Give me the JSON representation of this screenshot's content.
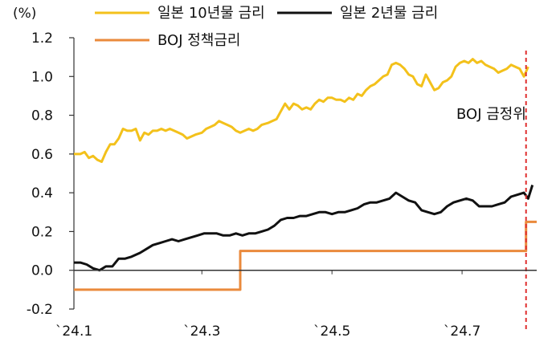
{
  "chart_data": {
    "type": "line",
    "unit": "(%)",
    "ylim": [
      -0.2,
      1.2
    ],
    "yticks": [
      "1.2",
      "1.0",
      "0.8",
      "0.6",
      "0.4",
      "0.2",
      "0.0",
      "-0.2"
    ],
    "ytick_values": [
      1.2,
      1.0,
      0.8,
      0.6,
      0.4,
      0.2,
      0.0,
      -0.2
    ],
    "xticks": [
      "`24.1",
      "`24.3",
      "`24.5",
      "`24.7"
    ],
    "xtick_values": [
      "2024-01-01",
      "2024-03-01",
      "2024-05-01",
      "2024-07-01"
    ],
    "xlim": [
      "2024-01-01",
      "2024-08-05"
    ],
    "grid": false,
    "legend_position": "top",
    "annotation": {
      "text": "BOJ 금정위",
      "x": "2024-07-31",
      "color": "#e03030"
    },
    "series": [
      {
        "name": "일본 10년물 금리",
        "color": "#f3c11b",
        "points": [
          [
            "2024-01-01",
            0.6
          ],
          [
            "2024-01-04",
            0.6
          ],
          [
            "2024-01-06",
            0.61
          ],
          [
            "2024-01-08",
            0.58
          ],
          [
            "2024-01-10",
            0.59
          ],
          [
            "2024-01-12",
            0.57
          ],
          [
            "2024-01-14",
            0.56
          ],
          [
            "2024-01-16",
            0.61
          ],
          [
            "2024-01-18",
            0.65
          ],
          [
            "2024-01-20",
            0.65
          ],
          [
            "2024-01-22",
            0.68
          ],
          [
            "2024-01-24",
            0.73
          ],
          [
            "2024-01-26",
            0.72
          ],
          [
            "2024-01-28",
            0.72
          ],
          [
            "2024-01-30",
            0.73
          ],
          [
            "2024-02-01",
            0.67
          ],
          [
            "2024-02-03",
            0.71
          ],
          [
            "2024-02-05",
            0.7
          ],
          [
            "2024-02-07",
            0.72
          ],
          [
            "2024-02-09",
            0.72
          ],
          [
            "2024-02-11",
            0.73
          ],
          [
            "2024-02-13",
            0.72
          ],
          [
            "2024-02-15",
            0.73
          ],
          [
            "2024-02-17",
            0.72
          ],
          [
            "2024-02-19",
            0.71
          ],
          [
            "2024-02-21",
            0.7
          ],
          [
            "2024-02-23",
            0.68
          ],
          [
            "2024-02-25",
            0.69
          ],
          [
            "2024-02-27",
            0.7
          ],
          [
            "2024-03-01",
            0.71
          ],
          [
            "2024-03-03",
            0.73
          ],
          [
            "2024-03-05",
            0.74
          ],
          [
            "2024-03-07",
            0.75
          ],
          [
            "2024-03-09",
            0.77
          ],
          [
            "2024-03-11",
            0.76
          ],
          [
            "2024-03-13",
            0.75
          ],
          [
            "2024-03-15",
            0.74
          ],
          [
            "2024-03-17",
            0.72
          ],
          [
            "2024-03-19",
            0.71
          ],
          [
            "2024-03-21",
            0.72
          ],
          [
            "2024-03-23",
            0.73
          ],
          [
            "2024-03-25",
            0.72
          ],
          [
            "2024-03-27",
            0.73
          ],
          [
            "2024-03-29",
            0.75
          ],
          [
            "2024-04-01",
            0.76
          ],
          [
            "2024-04-03",
            0.77
          ],
          [
            "2024-04-05",
            0.78
          ],
          [
            "2024-04-07",
            0.82
          ],
          [
            "2024-04-09",
            0.86
          ],
          [
            "2024-04-11",
            0.83
          ],
          [
            "2024-04-13",
            0.86
          ],
          [
            "2024-04-15",
            0.85
          ],
          [
            "2024-04-17",
            0.83
          ],
          [
            "2024-04-19",
            0.84
          ],
          [
            "2024-04-21",
            0.83
          ],
          [
            "2024-04-23",
            0.86
          ],
          [
            "2024-04-25",
            0.88
          ],
          [
            "2024-04-27",
            0.87
          ],
          [
            "2024-04-29",
            0.89
          ],
          [
            "2024-05-01",
            0.89
          ],
          [
            "2024-05-03",
            0.88
          ],
          [
            "2024-05-05",
            0.88
          ],
          [
            "2024-05-07",
            0.87
          ],
          [
            "2024-05-09",
            0.89
          ],
          [
            "2024-05-11",
            0.88
          ],
          [
            "2024-05-13",
            0.91
          ],
          [
            "2024-05-15",
            0.9
          ],
          [
            "2024-05-17",
            0.93
          ],
          [
            "2024-05-19",
            0.95
          ],
          [
            "2024-05-21",
            0.96
          ],
          [
            "2024-05-23",
            0.98
          ],
          [
            "2024-05-25",
            1.0
          ],
          [
            "2024-05-27",
            1.01
          ],
          [
            "2024-05-29",
            1.06
          ],
          [
            "2024-05-31",
            1.07
          ],
          [
            "2024-06-02",
            1.06
          ],
          [
            "2024-06-04",
            1.04
          ],
          [
            "2024-06-06",
            1.01
          ],
          [
            "2024-06-08",
            1.0
          ],
          [
            "2024-06-10",
            0.96
          ],
          [
            "2024-06-12",
            0.95
          ],
          [
            "2024-06-14",
            1.01
          ],
          [
            "2024-06-16",
            0.97
          ],
          [
            "2024-06-18",
            0.93
          ],
          [
            "2024-06-20",
            0.94
          ],
          [
            "2024-06-22",
            0.97
          ],
          [
            "2024-06-24",
            0.98
          ],
          [
            "2024-06-26",
            1.0
          ],
          [
            "2024-06-28",
            1.05
          ],
          [
            "2024-06-30",
            1.07
          ],
          [
            "2024-07-02",
            1.08
          ],
          [
            "2024-07-04",
            1.07
          ],
          [
            "2024-07-06",
            1.09
          ],
          [
            "2024-07-08",
            1.07
          ],
          [
            "2024-07-10",
            1.08
          ],
          [
            "2024-07-12",
            1.06
          ],
          [
            "2024-07-14",
            1.05
          ],
          [
            "2024-07-16",
            1.04
          ],
          [
            "2024-07-18",
            1.02
          ],
          [
            "2024-07-20",
            1.03
          ],
          [
            "2024-07-22",
            1.04
          ],
          [
            "2024-07-24",
            1.06
          ],
          [
            "2024-07-26",
            1.05
          ],
          [
            "2024-07-28",
            1.04
          ],
          [
            "2024-07-30",
            1.0
          ],
          [
            "2024-08-01",
            1.05
          ]
        ]
      },
      {
        "name": "일본 2년물 금리",
        "color": "#111111",
        "points": [
          [
            "2024-01-01",
            0.04
          ],
          [
            "2024-01-04",
            0.04
          ],
          [
            "2024-01-07",
            0.03
          ],
          [
            "2024-01-10",
            0.01
          ],
          [
            "2024-01-13",
            0.0
          ],
          [
            "2024-01-16",
            0.02
          ],
          [
            "2024-01-19",
            0.02
          ],
          [
            "2024-01-22",
            0.06
          ],
          [
            "2024-01-25",
            0.06
          ],
          [
            "2024-01-28",
            0.07
          ],
          [
            "2024-02-01",
            0.09
          ],
          [
            "2024-02-04",
            0.11
          ],
          [
            "2024-02-07",
            0.13
          ],
          [
            "2024-02-10",
            0.14
          ],
          [
            "2024-02-13",
            0.15
          ],
          [
            "2024-02-16",
            0.16
          ],
          [
            "2024-02-19",
            0.15
          ],
          [
            "2024-02-22",
            0.16
          ],
          [
            "2024-02-25",
            0.17
          ],
          [
            "2024-02-28",
            0.18
          ],
          [
            "2024-03-02",
            0.19
          ],
          [
            "2024-03-05",
            0.19
          ],
          [
            "2024-03-08",
            0.19
          ],
          [
            "2024-03-11",
            0.18
          ],
          [
            "2024-03-14",
            0.18
          ],
          [
            "2024-03-17",
            0.19
          ],
          [
            "2024-03-20",
            0.18
          ],
          [
            "2024-03-23",
            0.19
          ],
          [
            "2024-03-26",
            0.19
          ],
          [
            "2024-03-29",
            0.2
          ],
          [
            "2024-04-01",
            0.21
          ],
          [
            "2024-04-04",
            0.23
          ],
          [
            "2024-04-07",
            0.26
          ],
          [
            "2024-04-10",
            0.27
          ],
          [
            "2024-04-13",
            0.27
          ],
          [
            "2024-04-16",
            0.28
          ],
          [
            "2024-04-19",
            0.28
          ],
          [
            "2024-04-22",
            0.29
          ],
          [
            "2024-04-25",
            0.3
          ],
          [
            "2024-04-28",
            0.3
          ],
          [
            "2024-05-01",
            0.29
          ],
          [
            "2024-05-04",
            0.3
          ],
          [
            "2024-05-07",
            0.3
          ],
          [
            "2024-05-10",
            0.31
          ],
          [
            "2024-05-13",
            0.32
          ],
          [
            "2024-05-16",
            0.34
          ],
          [
            "2024-05-19",
            0.35
          ],
          [
            "2024-05-22",
            0.35
          ],
          [
            "2024-05-25",
            0.36
          ],
          [
            "2024-05-28",
            0.37
          ],
          [
            "2024-05-31",
            0.4
          ],
          [
            "2024-06-03",
            0.38
          ],
          [
            "2024-06-06",
            0.36
          ],
          [
            "2024-06-09",
            0.35
          ],
          [
            "2024-06-12",
            0.31
          ],
          [
            "2024-06-15",
            0.3
          ],
          [
            "2024-06-18",
            0.29
          ],
          [
            "2024-06-21",
            0.3
          ],
          [
            "2024-06-24",
            0.33
          ],
          [
            "2024-06-27",
            0.35
          ],
          [
            "2024-06-30",
            0.36
          ],
          [
            "2024-07-03",
            0.37
          ],
          [
            "2024-07-06",
            0.36
          ],
          [
            "2024-07-09",
            0.33
          ],
          [
            "2024-07-12",
            0.33
          ],
          [
            "2024-07-15",
            0.33
          ],
          [
            "2024-07-18",
            0.34
          ],
          [
            "2024-07-21",
            0.35
          ],
          [
            "2024-07-24",
            0.38
          ],
          [
            "2024-07-27",
            0.39
          ],
          [
            "2024-07-30",
            0.4
          ],
          [
            "2024-08-01",
            0.37
          ],
          [
            "2024-08-03",
            0.44
          ]
        ]
      },
      {
        "name": "BOJ 정책금리",
        "color": "#ea8a3c",
        "points": [
          [
            "2024-01-01",
            -0.1
          ],
          [
            "2024-03-19",
            -0.1
          ],
          [
            "2024-03-19",
            0.1
          ],
          [
            "2024-07-31",
            0.1
          ],
          [
            "2024-07-31",
            0.25
          ],
          [
            "2024-08-05",
            0.25
          ]
        ]
      }
    ]
  }
}
